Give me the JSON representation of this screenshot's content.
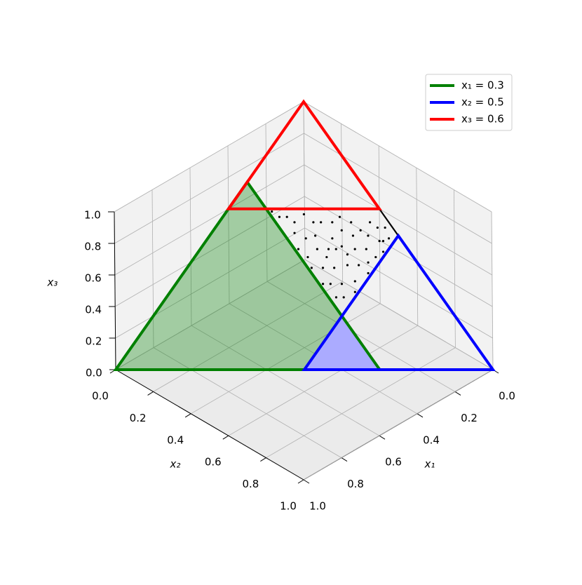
{
  "chart_data": {
    "type": "simplex3d",
    "xlabel": "x₁",
    "ylabel": "x₂",
    "zlabel": "x₃",
    "xlim": [
      0,
      1
    ],
    "ylim": [
      0,
      1
    ],
    "zlim": [
      0,
      1
    ],
    "xticks": [
      {
        "value": 0,
        "label": "0.0"
      },
      {
        "value": 0.2,
        "label": "0.2"
      },
      {
        "value": 0.4,
        "label": "0.4"
      },
      {
        "value": 0.6,
        "label": "0.6"
      },
      {
        "value": 0.8,
        "label": "0.8"
      },
      {
        "value": 1,
        "label": "1.0"
      }
    ],
    "yticks": [
      {
        "value": 0,
        "label": "0.0"
      },
      {
        "value": 0.2,
        "label": "0.2"
      },
      {
        "value": 0.4,
        "label": "0.4"
      },
      {
        "value": 0.6,
        "label": "0.6"
      },
      {
        "value": 0.8,
        "label": "0.8"
      },
      {
        "value": 1,
        "label": "1.0"
      }
    ],
    "zticks": [
      {
        "value": 0,
        "label": "0.0"
      },
      {
        "value": 0.2,
        "label": "0.2"
      },
      {
        "value": 0.4,
        "label": "0.4"
      },
      {
        "value": 0.6,
        "label": "0.6"
      },
      {
        "value": 0.8,
        "label": "0.8"
      },
      {
        "value": 1,
        "label": "1.0"
      }
    ],
    "grid": true,
    "legend": "upper right",
    "series": [
      {
        "name": "x₁ = 0.3",
        "color": "#008000",
        "value": 0.3
      },
      {
        "name": "x₂ = 0.5",
        "color": "#0000ff",
        "value": 0.5
      },
      {
        "name": "x₃ = 0.6",
        "color": "#ff0000",
        "value": 0.6
      }
    ],
    "scatter": {
      "color": "#000000",
      "x1": [
        0.05,
        0.1,
        0.15,
        0.2,
        0.25,
        0.28,
        0.02,
        0.08,
        0.12,
        0.18,
        0.22,
        0.27,
        0.03,
        0.06,
        0.11,
        0.14,
        0.17,
        0.21,
        0.24,
        0.29,
        0.07,
        0.13,
        0.16,
        0.19,
        0.23,
        0.26,
        0.29,
        0.1,
        0.15,
        0.2,
        0.24,
        0.27,
        0.22,
        0.26,
        0.28,
        0.29,
        0.25,
        0.18,
        0.09,
        0.04,
        0.14,
        0.21,
        0.26,
        0.29,
        0.12,
        0.17,
        0.05,
        0.19,
        0.23,
        0.28
      ],
      "x2": [
        0.4,
        0.35,
        0.3,
        0.25,
        0.2,
        0.15,
        0.45,
        0.42,
        0.38,
        0.33,
        0.28,
        0.22,
        0.48,
        0.46,
        0.44,
        0.41,
        0.37,
        0.34,
        0.31,
        0.26,
        0.49,
        0.47,
        0.45,
        0.42,
        0.39,
        0.36,
        0.33,
        0.48,
        0.49,
        0.47,
        0.44,
        0.41,
        0.49,
        0.47,
        0.45,
        0.39,
        0.26,
        0.27,
        0.39,
        0.43,
        0.34,
        0.21,
        0.17,
        0.12,
        0.31,
        0.4,
        0.47,
        0.36,
        0.35,
        0.3
      ]
    }
  }
}
